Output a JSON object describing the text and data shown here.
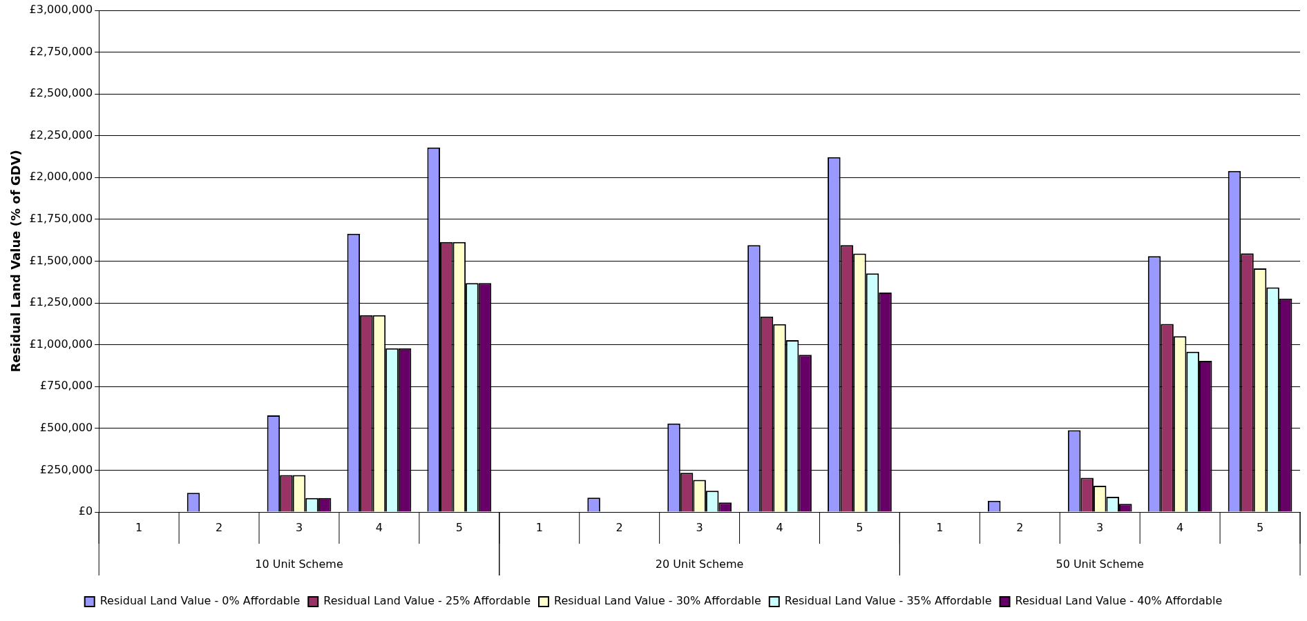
{
  "chart_data": {
    "type": "bar",
    "ylabel": "Residual Land Value (% of GDV)",
    "categories": [
      "1",
      "2",
      "3",
      "4",
      "5",
      "1",
      "2",
      "3",
      "4",
      "5",
      "1",
      "2",
      "3",
      "4",
      "5"
    ],
    "annotations": [
      "10 Unit Scheme",
      "20 Unit Scheme",
      "50 Unit Scheme"
    ],
    "series": [
      {
        "name": "Residual Land Value - 0% Affordable",
        "color": "#9999ff",
        "values": [
          0,
          115000,
          578000,
          1664000,
          2180000,
          0,
          86000,
          529000,
          1596000,
          2122000,
          0,
          67000,
          489000,
          1530000,
          2040000
        ]
      },
      {
        "name": "Residual Land Value - 25% Affordable",
        "color": "#993366",
        "values": [
          0,
          0,
          221000,
          1177000,
          1614000,
          0,
          0,
          234000,
          1169000,
          1596000,
          0,
          0,
          204000,
          1125000,
          1546000
        ]
      },
      {
        "name": "Residual Land Value - 30% Affordable",
        "color": "#ffffcc",
        "values": [
          0,
          0,
          221000,
          1177000,
          1614000,
          0,
          0,
          192000,
          1123000,
          1545000,
          0,
          0,
          157000,
          1051000,
          1457000
        ]
      },
      {
        "name": "Residual Land Value - 35% Affordable",
        "color": "#ccffff",
        "values": [
          0,
          0,
          84000,
          979000,
          1369000,
          0,
          0,
          127000,
          1028000,
          1427000,
          0,
          0,
          91000,
          958000,
          1343000
        ]
      },
      {
        "name": "Residual Land Value - 40% Affordable",
        "color": "#660066",
        "values": [
          0,
          0,
          84000,
          979000,
          1369000,
          0,
          0,
          57000,
          940000,
          1312000,
          0,
          0,
          48000,
          904000,
          1276000
        ]
      }
    ],
    "ylim": [
      0,
      3000000
    ],
    "yticks": [
      {
        "value": 0,
        "label": "£0"
      },
      {
        "value": 250000,
        "label": "£250,000"
      },
      {
        "value": 500000,
        "label": "£500,000"
      },
      {
        "value": 750000,
        "label": "£750,000"
      },
      {
        "value": 1000000,
        "label": "£1,000,000"
      },
      {
        "value": 1250000,
        "label": "£1,250,000"
      },
      {
        "value": 1500000,
        "label": "£1,500,000"
      },
      {
        "value": 1750000,
        "label": "£1,750,000"
      },
      {
        "value": 2000000,
        "label": "£2,000,000"
      },
      {
        "value": 2250000,
        "label": "£2,250,000"
      },
      {
        "value": 2500000,
        "label": "£2,500,000"
      },
      {
        "value": 2750000,
        "label": "£2,750,000"
      },
      {
        "value": 3000000,
        "label": "£3,000,000"
      }
    ],
    "grid": "y",
    "legend": "bottom"
  }
}
